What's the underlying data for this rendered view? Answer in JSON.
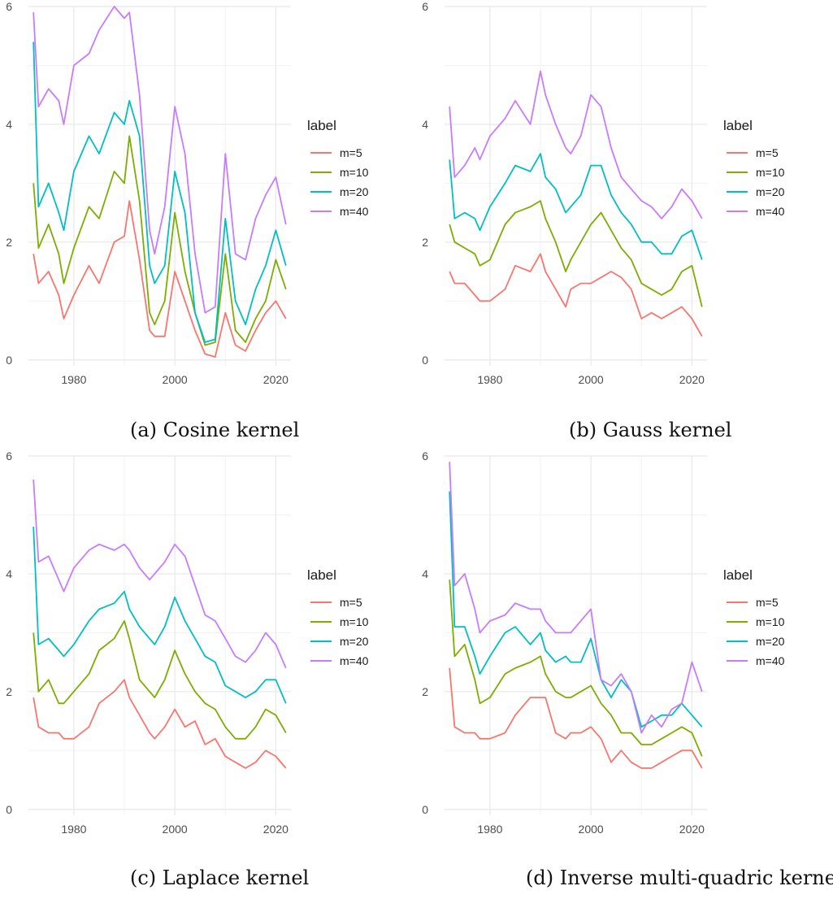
{
  "legend": {
    "title": "label",
    "entries": [
      {
        "name": "m=5",
        "color": "#F8766D"
      },
      {
        "name": "m=10",
        "color": "#7CAE00"
      },
      {
        "name": "m=20",
        "color": "#00BFC4"
      },
      {
        "name": "m=40",
        "color": "#C77CFF"
      }
    ]
  },
  "chart_data": [
    {
      "type": "line",
      "title": "(a) Cosine kernel",
      "xlim": [
        1971,
        2023
      ],
      "ylim": [
        -0.1,
        6.0
      ],
      "x_ticks": [
        1980,
        2000,
        2020
      ],
      "y_ticks": [
        0,
        2,
        4,
        6
      ],
      "x": [
        1972,
        1973,
        1975,
        1977,
        1978,
        1980,
        1983,
        1985,
        1988,
        1990,
        1991,
        1993,
        1995,
        1996,
        1998,
        2000,
        2002,
        2004,
        2006,
        2008,
        2010,
        2012,
        2014,
        2016,
        2018,
        2020,
        2022
      ],
      "series": [
        {
          "name": "m=5",
          "values": [
            1.8,
            1.3,
            1.5,
            1.1,
            0.7,
            1.1,
            1.6,
            1.3,
            2.0,
            2.1,
            2.7,
            1.7,
            0.5,
            0.4,
            0.4,
            1.5,
            1.0,
            0.5,
            0.1,
            0.05,
            0.8,
            0.25,
            0.15,
            0.5,
            0.8,
            1.0,
            0.7
          ]
        },
        {
          "name": "m=10",
          "values": [
            3.0,
            1.9,
            2.3,
            1.8,
            1.3,
            1.9,
            2.6,
            2.4,
            3.2,
            3.0,
            3.8,
            2.7,
            0.8,
            0.6,
            1.0,
            2.5,
            1.5,
            0.8,
            0.25,
            0.3,
            1.8,
            0.5,
            0.3,
            0.7,
            1.0,
            1.7,
            1.2
          ]
        },
        {
          "name": "m=20",
          "values": [
            5.4,
            2.6,
            3.0,
            2.5,
            2.2,
            3.2,
            3.8,
            3.5,
            4.2,
            4.0,
            4.4,
            3.8,
            1.6,
            1.3,
            1.6,
            3.2,
            2.5,
            0.8,
            0.3,
            0.35,
            2.4,
            1.0,
            0.6,
            1.2,
            1.6,
            2.2,
            1.6
          ]
        },
        {
          "name": "m=40",
          "values": [
            5.9,
            4.3,
            4.6,
            4.4,
            4.0,
            5.0,
            5.2,
            5.6,
            6.0,
            5.8,
            5.9,
            4.5,
            2.2,
            1.8,
            2.6,
            4.3,
            3.5,
            1.8,
            0.8,
            0.9,
            3.5,
            1.8,
            1.7,
            2.4,
            2.8,
            3.1,
            2.3
          ]
        }
      ]
    },
    {
      "type": "line",
      "title": "(b) Gauss kernel",
      "xlim": [
        1971,
        2023
      ],
      "ylim": [
        -0.1,
        6.0
      ],
      "x_ticks": [
        1980,
        2000,
        2020
      ],
      "y_ticks": [
        0,
        2,
        4,
        6
      ],
      "x": [
        1972,
        1973,
        1975,
        1977,
        1978,
        1980,
        1983,
        1985,
        1988,
        1990,
        1991,
        1993,
        1995,
        1996,
        1998,
        2000,
        2002,
        2004,
        2006,
        2008,
        2010,
        2012,
        2014,
        2016,
        2018,
        2020,
        2022
      ],
      "series": [
        {
          "name": "m=5",
          "values": [
            1.5,
            1.3,
            1.3,
            1.1,
            1.0,
            1.0,
            1.2,
            1.6,
            1.5,
            1.8,
            1.5,
            1.2,
            0.9,
            1.2,
            1.3,
            1.3,
            1.4,
            1.5,
            1.4,
            1.2,
            0.7,
            0.8,
            0.7,
            0.8,
            0.9,
            0.7,
            0.4
          ]
        },
        {
          "name": "m=10",
          "values": [
            2.3,
            2.0,
            1.9,
            1.8,
            1.6,
            1.7,
            2.3,
            2.5,
            2.6,
            2.7,
            2.4,
            2.0,
            1.5,
            1.7,
            2.0,
            2.3,
            2.5,
            2.2,
            1.9,
            1.7,
            1.3,
            1.2,
            1.1,
            1.2,
            1.5,
            1.6,
            0.9
          ]
        },
        {
          "name": "m=20",
          "values": [
            3.4,
            2.4,
            2.5,
            2.4,
            2.2,
            2.6,
            3.0,
            3.3,
            3.2,
            3.5,
            3.1,
            2.9,
            2.5,
            2.6,
            2.8,
            3.3,
            3.3,
            2.8,
            2.5,
            2.3,
            2.0,
            2.0,
            1.8,
            1.8,
            2.1,
            2.2,
            1.7
          ]
        },
        {
          "name": "m=40",
          "values": [
            4.3,
            3.1,
            3.3,
            3.6,
            3.4,
            3.8,
            4.1,
            4.4,
            4.0,
            4.9,
            4.5,
            4.0,
            3.6,
            3.5,
            3.8,
            4.5,
            4.3,
            3.6,
            3.1,
            2.9,
            2.7,
            2.6,
            2.4,
            2.6,
            2.9,
            2.7,
            2.4
          ]
        }
      ]
    },
    {
      "type": "line",
      "title": "(c) Laplace kernel",
      "xlim": [
        1971,
        2023
      ],
      "ylim": [
        -0.1,
        6.0
      ],
      "x_ticks": [
        1980,
        2000,
        2020
      ],
      "y_ticks": [
        0,
        2,
        4,
        6
      ],
      "x": [
        1972,
        1973,
        1975,
        1977,
        1978,
        1980,
        1983,
        1985,
        1988,
        1990,
        1991,
        1993,
        1995,
        1996,
        1998,
        2000,
        2002,
        2004,
        2006,
        2008,
        2010,
        2012,
        2014,
        2016,
        2018,
        2020,
        2022
      ],
      "series": [
        {
          "name": "m=5",
          "values": [
            1.9,
            1.4,
            1.3,
            1.3,
            1.2,
            1.2,
            1.4,
            1.8,
            2.0,
            2.2,
            1.9,
            1.6,
            1.3,
            1.2,
            1.4,
            1.7,
            1.4,
            1.5,
            1.1,
            1.2,
            0.9,
            0.8,
            0.7,
            0.8,
            1.0,
            0.9,
            0.7
          ]
        },
        {
          "name": "m=10",
          "values": [
            3.0,
            2.0,
            2.2,
            1.8,
            1.8,
            2.0,
            2.3,
            2.7,
            2.9,
            3.2,
            2.9,
            2.2,
            2.0,
            1.9,
            2.2,
            2.7,
            2.3,
            2.0,
            1.8,
            1.7,
            1.4,
            1.2,
            1.2,
            1.4,
            1.7,
            1.6,
            1.3
          ]
        },
        {
          "name": "m=20",
          "values": [
            4.8,
            2.8,
            2.9,
            2.7,
            2.6,
            2.8,
            3.2,
            3.4,
            3.5,
            3.7,
            3.4,
            3.1,
            2.9,
            2.8,
            3.1,
            3.6,
            3.2,
            2.9,
            2.6,
            2.5,
            2.1,
            2.0,
            1.9,
            2.0,
            2.2,
            2.2,
            1.8
          ]
        },
        {
          "name": "m=40",
          "values": [
            5.6,
            4.2,
            4.3,
            3.9,
            3.7,
            4.1,
            4.4,
            4.5,
            4.4,
            4.5,
            4.4,
            4.1,
            3.9,
            4.0,
            4.2,
            4.5,
            4.3,
            3.8,
            3.3,
            3.2,
            2.9,
            2.6,
            2.5,
            2.7,
            3.0,
            2.8,
            2.4
          ]
        }
      ]
    },
    {
      "type": "line",
      "title": "(d) Inverse multi-quadric kernel",
      "xlim": [
        1971,
        2023
      ],
      "ylim": [
        -0.1,
        6.0
      ],
      "x_ticks": [
        1980,
        2000,
        2020
      ],
      "y_ticks": [
        0,
        2,
        4,
        6
      ],
      "x": [
        1972,
        1973,
        1975,
        1977,
        1978,
        1980,
        1983,
        1985,
        1988,
        1990,
        1991,
        1993,
        1995,
        1996,
        1998,
        2000,
        2002,
        2004,
        2006,
        2008,
        2010,
        2012,
        2014,
        2016,
        2018,
        2020,
        2022
      ],
      "series": [
        {
          "name": "m=5",
          "values": [
            2.4,
            1.4,
            1.3,
            1.3,
            1.2,
            1.2,
            1.3,
            1.6,
            1.9,
            1.9,
            1.9,
            1.3,
            1.2,
            1.3,
            1.3,
            1.4,
            1.2,
            0.8,
            1.0,
            0.8,
            0.7,
            0.7,
            0.8,
            0.9,
            1.0,
            1.0,
            0.7
          ]
        },
        {
          "name": "m=10",
          "values": [
            3.9,
            2.6,
            2.8,
            2.2,
            1.8,
            1.9,
            2.3,
            2.4,
            2.5,
            2.6,
            2.3,
            2.0,
            1.9,
            1.9,
            2.0,
            2.1,
            1.8,
            1.6,
            1.3,
            1.3,
            1.1,
            1.1,
            1.2,
            1.3,
            1.4,
            1.3,
            0.9
          ]
        },
        {
          "name": "m=20",
          "values": [
            5.4,
            3.1,
            3.1,
            2.6,
            2.3,
            2.6,
            3.0,
            3.1,
            2.8,
            3.0,
            2.7,
            2.5,
            2.6,
            2.5,
            2.5,
            2.9,
            2.2,
            1.9,
            2.2,
            2.0,
            1.4,
            1.5,
            1.6,
            1.6,
            1.8,
            1.6,
            1.4
          ]
        },
        {
          "name": "m=40",
          "values": [
            5.9,
            3.8,
            4.0,
            3.4,
            3.0,
            3.2,
            3.3,
            3.5,
            3.4,
            3.4,
            3.2,
            3.0,
            3.0,
            3.0,
            3.2,
            3.4,
            2.2,
            2.1,
            2.3,
            2.0,
            1.3,
            1.6,
            1.4,
            1.7,
            1.8,
            2.5,
            2.0
          ]
        }
      ]
    }
  ]
}
